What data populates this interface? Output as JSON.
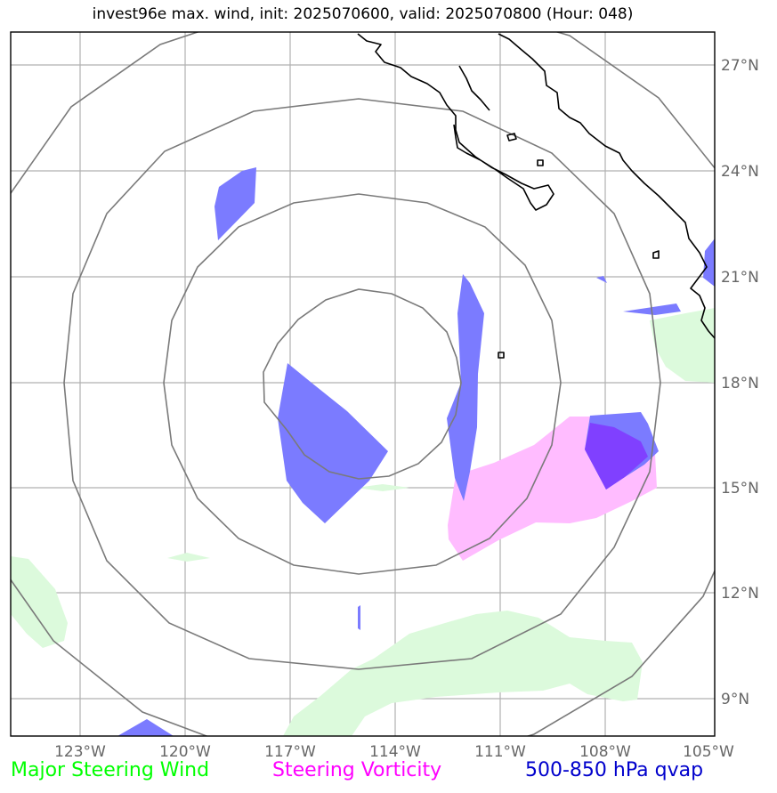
{
  "title": "invest96e max. wind, init: 2025070600, valid: 2025070800 (Hour: 048)",
  "map": {
    "lon_min": -124.8,
    "lon_max": -104.8,
    "lat_min": 8.0,
    "lat_max": 27.9,
    "center": {
      "lon": -115.0,
      "lat": 18.0
    },
    "range_ring_radii_deg": [
      2.5,
      5.5,
      8.5,
      11.5
    ],
    "gridlines": true
  },
  "lon_ticks": [
    "123°W",
    "120°W",
    "117°W",
    "114°W",
    "111°W",
    "108°W",
    "105°W"
  ],
  "lat_ticks": [
    "27°N",
    "24°N",
    "21°N",
    "18°N",
    "15°N",
    "12°N",
    "9°N"
  ],
  "legend": [
    {
      "label": "Major Steering Wind",
      "color": "#00ff00"
    },
    {
      "label": "Steering Vorticity",
      "color": "#ff00ff"
    },
    {
      "label": "500-850 hPa qvap",
      "color": "#0000cc"
    }
  ],
  "colors": {
    "steering_wind_fill": "#dcfadc",
    "vorticity_fill": "#ffbcff",
    "qvap_fill": "#7b7bff",
    "overlap_fill": "#8040ff",
    "coastline": "#000000",
    "rings": "#7a7a7a",
    "grid": "#b0b0b0"
  }
}
